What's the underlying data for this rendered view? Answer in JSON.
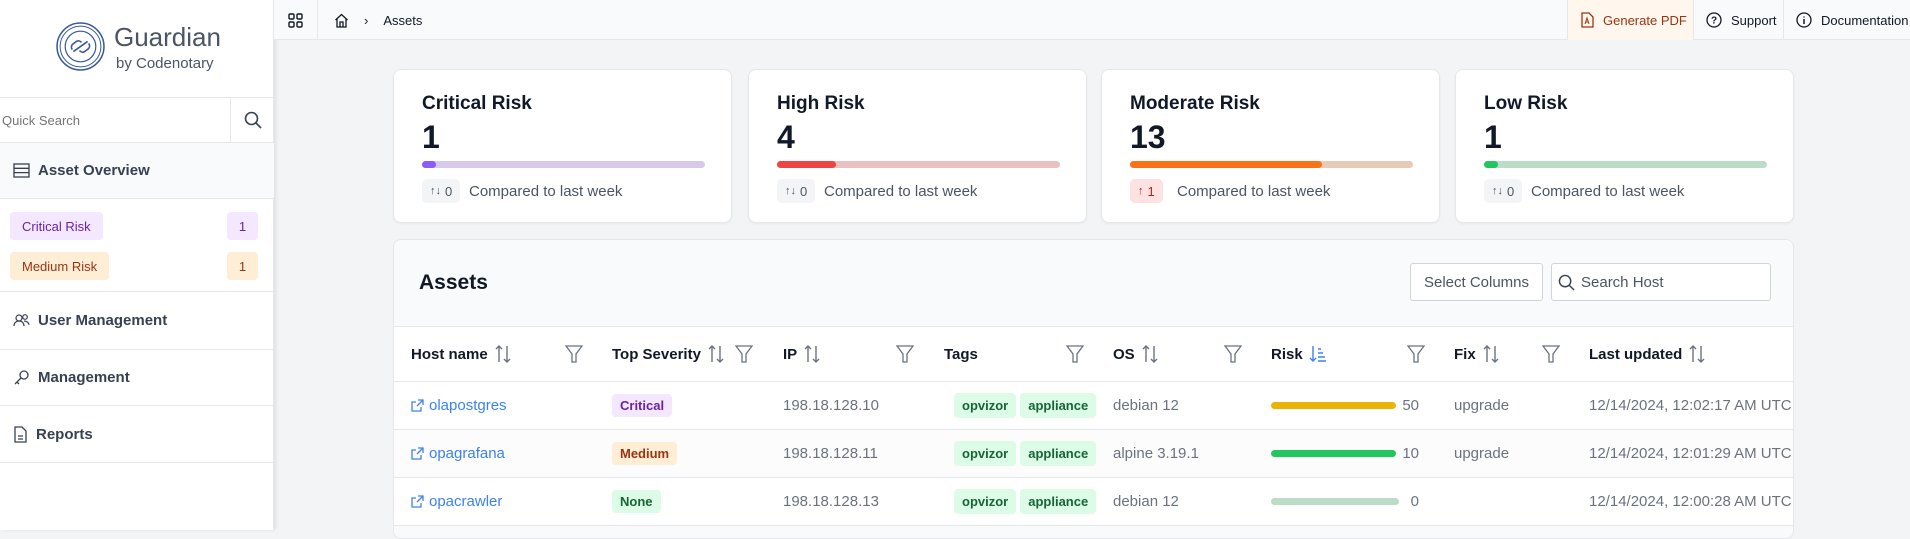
{
  "sidebar": {
    "brand": "Guardian",
    "brand_sub": "by Codenotary",
    "search_placeholder": "Quick Search",
    "asset_overview": "Asset Overview",
    "filters": [
      {
        "label": "Critical Risk",
        "count": "1"
      },
      {
        "label": "Medium Risk",
        "count": "1"
      }
    ],
    "items": [
      {
        "label": "User Management"
      },
      {
        "label": "Management"
      },
      {
        "label": "Reports"
      }
    ]
  },
  "topbar": {
    "breadcrumb": "Assets",
    "generate_pdf": "Generate PDF",
    "support": "Support",
    "documentation": "Documentation"
  },
  "cards": [
    {
      "title": "Critical Risk",
      "value": "1",
      "progress": 0.05,
      "change": "0",
      "change_icon": "↑↓",
      "compare": "Compared to last week",
      "color": "#8b5cf6",
      "track": "#d8c8ea"
    },
    {
      "title": "High Risk",
      "value": "4",
      "progress": 0.21,
      "change": "0",
      "change_icon": "↑↓",
      "compare": "Compared to last week",
      "color": "#ef4444",
      "track": "#e8c2c2"
    },
    {
      "title": "Moderate Risk",
      "value": "13",
      "progress": 0.68,
      "change": "1",
      "change_icon": "↑",
      "compare": "Compared to last week",
      "color": "#f97316",
      "track": "#e8cbb6"
    },
    {
      "title": "Low Risk",
      "value": "1",
      "progress": 0.05,
      "change": "0",
      "change_icon": "↑↓",
      "compare": "Compared to last week",
      "color": "#22c55e",
      "track": "#bbdcc6"
    }
  ],
  "assets": {
    "title": "Assets",
    "select_columns": "Select Columns",
    "search_placeholder": "Search Host",
    "columns": [
      "Host name",
      "Top Severity",
      "IP",
      "Tags",
      "OS",
      "Risk",
      "Fix",
      "Last updated"
    ],
    "rows": [
      {
        "host": "olapostgres",
        "severity": "Critical",
        "ip": "198.18.128.10",
        "tags": [
          "opvizor",
          "appliance"
        ],
        "os": "debian 12",
        "risk": "50",
        "fix": "upgrade",
        "updated": "12/14/2024, 12:02:17 AM UTC"
      },
      {
        "host": "opagrafana",
        "severity": "Medium",
        "ip": "198.18.128.11",
        "tags": [
          "opvizor",
          "appliance"
        ],
        "os": "alpine 3.19.1",
        "risk": "10",
        "fix": "upgrade",
        "updated": "12/14/2024, 12:01:29 AM UTC"
      },
      {
        "host": "opacrawler",
        "severity": "None",
        "ip": "198.18.128.13",
        "tags": [
          "opvizor",
          "appliance"
        ],
        "os": "debian 12",
        "risk": "0",
        "fix": "",
        "updated": "12/14/2024, 12:00:28 AM UTC"
      }
    ]
  }
}
